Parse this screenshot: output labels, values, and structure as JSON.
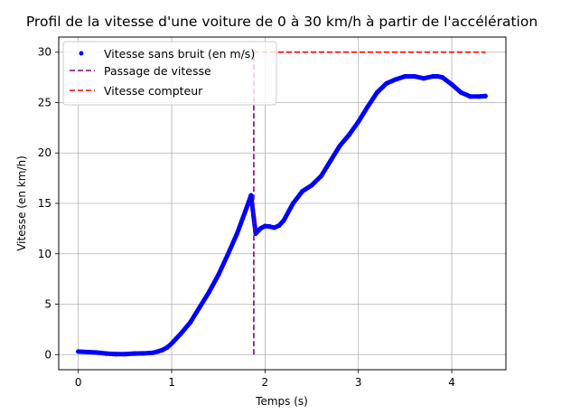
{
  "chart_data": {
    "type": "line",
    "title": "Profil de la vitesse d'une voiture de 0 à 30 km/h à partir de l'accélération",
    "xlabel": "Temps (s)",
    "ylabel": "Vitesse (en km/h)",
    "xlim": [
      -0.21,
      4.58
    ],
    "ylim": [
      -1.5,
      31.5
    ],
    "xticks": [
      0,
      1,
      2,
      3,
      4
    ],
    "yticks": [
      0,
      5,
      10,
      15,
      20,
      25,
      30
    ],
    "grid": true,
    "legend_position": "upper left",
    "series": [
      {
        "name": "Vitesse sans bruit (en m/s)",
        "style": "dots",
        "color": "#0000ff",
        "x": [
          0,
          0.1,
          0.2,
          0.3,
          0.4,
          0.5,
          0.6,
          0.7,
          0.8,
          0.85,
          0.9,
          0.95,
          1.0,
          1.05,
          1.1,
          1.2,
          1.3,
          1.4,
          1.5,
          1.6,
          1.7,
          1.8,
          1.85,
          1.9,
          1.95,
          2.0,
          2.05,
          2.1,
          2.15,
          2.2,
          2.3,
          2.4,
          2.5,
          2.6,
          2.7,
          2.8,
          2.9,
          3.0,
          3.1,
          3.2,
          3.3,
          3.4,
          3.5,
          3.6,
          3.7,
          3.8,
          3.85,
          3.9,
          4.0,
          4.1,
          4.2,
          4.3,
          4.36
        ],
        "y": [
          0.3,
          0.25,
          0.2,
          0.1,
          0.05,
          0.05,
          0.1,
          0.12,
          0.18,
          0.3,
          0.45,
          0.7,
          1.1,
          1.6,
          2.1,
          3.2,
          4.7,
          6.2,
          7.9,
          9.9,
          12.0,
          14.5,
          15.8,
          12.0,
          12.5,
          12.75,
          12.7,
          12.6,
          12.8,
          13.3,
          15.0,
          16.2,
          16.8,
          17.7,
          19.2,
          20.7,
          21.8,
          23.1,
          24.6,
          26.0,
          26.9,
          27.3,
          27.6,
          27.6,
          27.4,
          27.6,
          27.6,
          27.5,
          26.8,
          26.0,
          25.6,
          25.6,
          25.65
        ]
      },
      {
        "name": "Passage de vitesse",
        "style": "dashed",
        "color": "#800080",
        "x": [
          1.88,
          1.88
        ],
        "y": [
          0,
          30
        ]
      },
      {
        "name": "Vitesse compteur",
        "style": "dashed",
        "color": "#ff0000",
        "x": [
          1.88,
          4.36
        ],
        "y": [
          30,
          30
        ]
      }
    ]
  }
}
